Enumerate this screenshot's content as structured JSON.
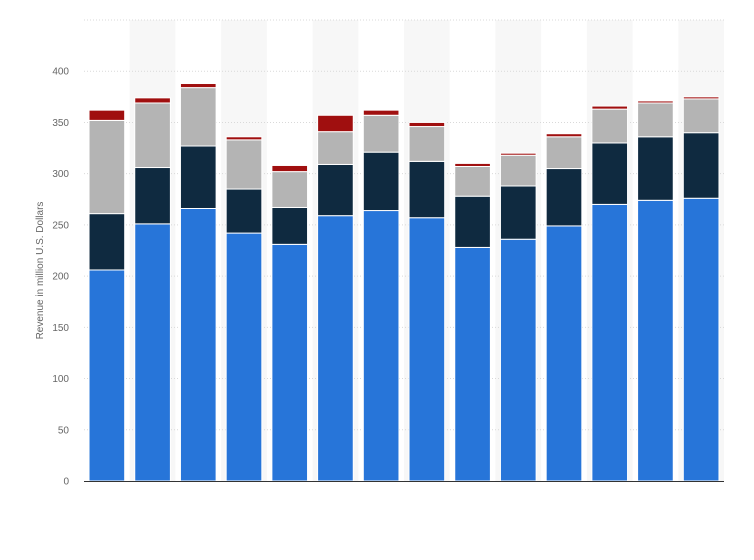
{
  "chart_data": {
    "type": "bar",
    "stacked": true,
    "title": "",
    "xlabel": "",
    "ylabel": "Revenue in million U.S. Dollars",
    "ylim": [
      0,
      450
    ],
    "yticks": [
      0,
      50,
      100,
      150,
      200,
      250,
      300,
      350,
      400
    ],
    "grid": true,
    "legend": "none",
    "categories": [
      "",
      "",
      "",
      "",
      "",
      "",
      "",
      "",
      "",
      "",
      "",
      "",
      "",
      ""
    ],
    "series": [
      {
        "color": "#2775d9",
        "values": [
          206,
          251,
          266,
          242,
          231,
          259,
          264,
          257,
          228,
          236,
          249,
          270,
          274,
          276
        ]
      },
      {
        "color": "#0f2a40",
        "values": [
          55,
          55,
          61,
          43,
          36,
          50,
          57,
          55,
          50,
          52,
          56,
          60,
          62,
          64
        ]
      },
      {
        "color": "#b4b4b4",
        "values": [
          91,
          63,
          57,
          48,
          35,
          32,
          36,
          34,
          29,
          30,
          31,
          33,
          33,
          33
        ]
      },
      {
        "color": "#a00f0f",
        "values": [
          10,
          5,
          4,
          3,
          6,
          16,
          5,
          4,
          3,
          2,
          3,
          3,
          2,
          2
        ]
      }
    ],
    "colors": {
      "grid": "#d9d9d9",
      "axis": "#333333",
      "band": "#f7f7f7",
      "tick_text": "#666666"
    }
  }
}
